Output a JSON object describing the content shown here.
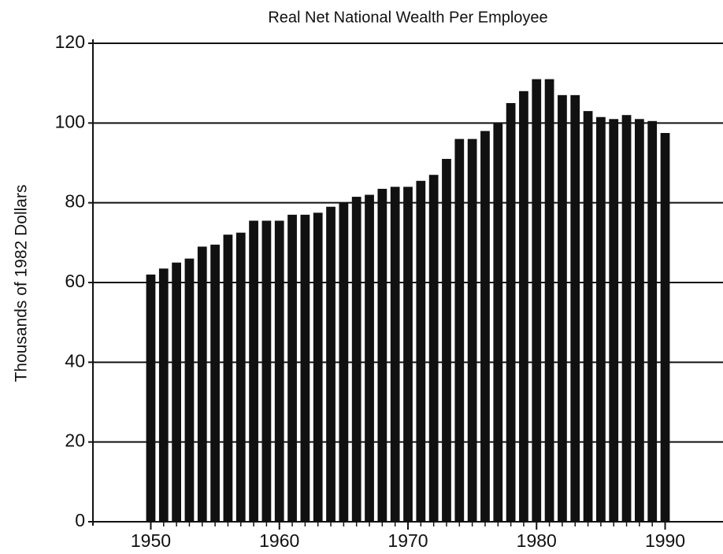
{
  "chart_data": {
    "type": "bar",
    "title": "Real Net National Wealth Per Employee",
    "y_label": "Thousands of 1982 Dollars",
    "x": [
      1950,
      1951,
      1952,
      1953,
      1954,
      1955,
      1956,
      1957,
      1958,
      1959,
      1960,
      1961,
      1962,
      1963,
      1964,
      1965,
      1966,
      1967,
      1968,
      1969,
      1970,
      1971,
      1972,
      1973,
      1974,
      1975,
      1976,
      1977,
      1978,
      1979,
      1980,
      1981,
      1982,
      1983,
      1984,
      1985,
      1986,
      1987,
      1988,
      1989,
      1990
    ],
    "values": [
      62,
      63.5,
      65,
      66,
      69,
      69.5,
      72,
      72.5,
      75.5,
      75.5,
      75.5,
      77,
      77,
      77.5,
      79,
      80,
      81.5,
      82,
      83.5,
      84,
      84,
      85.5,
      87,
      91,
      96,
      96,
      98,
      100,
      105,
      108,
      111,
      111,
      107,
      107,
      103,
      101.5,
      101,
      102,
      101,
      100.5,
      97.5
    ],
    "color": "#111111",
    "xlim": [
      1945.5,
      1994.5
    ],
    "xticks": [
      1950,
      1960,
      1970,
      1980,
      1990
    ],
    "ylim": [
      0,
      120
    ],
    "yticks": [
      0,
      20,
      40,
      60,
      80,
      100,
      120
    ],
    "grid": true
  }
}
